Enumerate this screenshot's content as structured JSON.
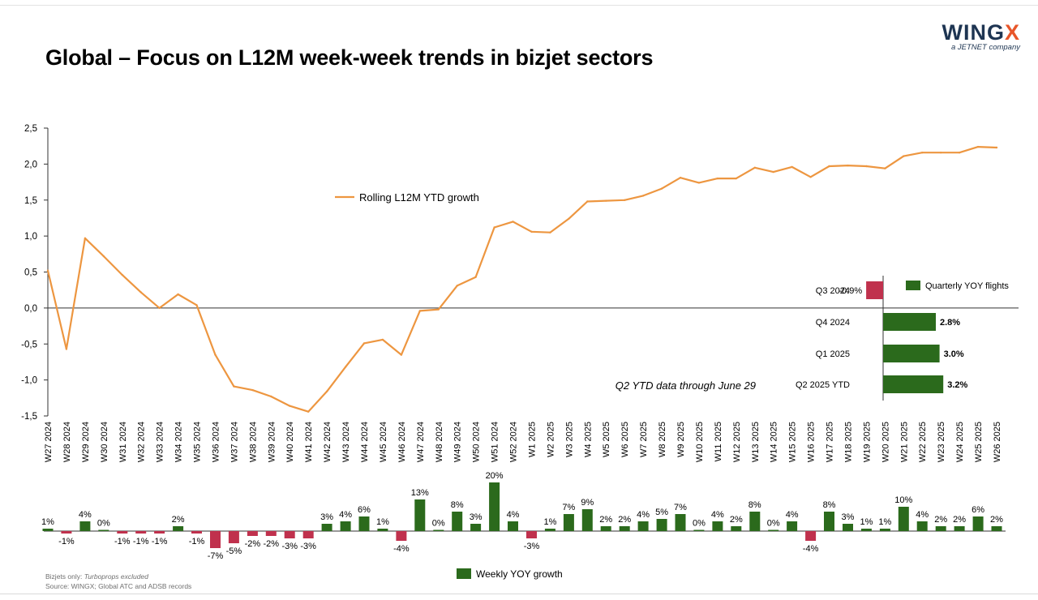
{
  "header": {
    "title": "Global – Focus on L12M week-week trends in bizjet sectors",
    "logo_main": "WING",
    "logo_x": "X",
    "logo_sub": "a JETNET company"
  },
  "footer": {
    "note_prefix": "Bizjets only: ",
    "note_italic": "Turboprops excluded",
    "source": "Source: WINGX; Global ATC and ADSB records"
  },
  "colors": {
    "line": "#ed9640",
    "positive": "#2b6a1c",
    "negative": "#c0314d",
    "axis": "#333333",
    "text": "#000000"
  },
  "chart_data": [
    {
      "type": "line",
      "series": [
        {
          "name": "Rolling L12M YTD growth",
          "values": [
            0.52,
            -0.57,
            0.97,
            0.72,
            0.46,
            0.22,
            0.0,
            0.19,
            0.04,
            -0.65,
            -1.09,
            -1.14,
            -1.23,
            -1.36,
            -1.44,
            -1.16,
            -0.82,
            -0.49,
            -0.44,
            -0.65,
            -0.04,
            -0.02,
            0.31,
            0.43,
            1.12,
            1.2,
            1.06,
            1.05,
            1.24,
            1.48,
            1.49,
            1.5,
            1.56,
            1.66,
            1.81,
            1.74,
            1.8,
            1.8,
            1.95,
            1.89,
            1.96,
            1.82,
            1.97,
            1.98,
            1.97,
            1.94,
            2.11,
            2.16,
            2.16,
            2.16,
            2.24,
            2.23
          ]
        }
      ],
      "categories": [
        "W27 2024",
        "W28 2024",
        "W29 2024",
        "W30 2024",
        "W31 2024",
        "W32 2024",
        "W33 2024",
        "W34 2024",
        "W35 2024",
        "W36 2024",
        "W37 2024",
        "W38 2024",
        "W39 2024",
        "W40 2024",
        "W41 2024",
        "W42 2024",
        "W43 2024",
        "W44 2024",
        "W45 2024",
        "W46 2024",
        "W47 2024",
        "W48 2024",
        "W49 2024",
        "W50 2024",
        "W51 2024",
        "W52 2024",
        "W1 2025",
        "W2 2025",
        "W3 2025",
        "W4 2025",
        "W5 2025",
        "W6 2025",
        "W7 2025",
        "W8 2025",
        "W9 2025",
        "W10 2025",
        "W11 2025",
        "W12 2025",
        "W13 2025",
        "W14 2025",
        "W15 2025",
        "W16 2025",
        "W17 2025",
        "W18 2025",
        "W19 2025",
        "W20 2025",
        "W21 2025",
        "W22 2025",
        "W23 2025",
        "W24 2025",
        "W25 2025",
        "W26 2025"
      ],
      "yticks": [
        "2,5",
        "2,0",
        "1,5",
        "1,0",
        "0,5",
        "0,0",
        "-0,5",
        "-1,0",
        "-1,5"
      ],
      "ylim": [
        -1.5,
        2.5
      ],
      "grid": false,
      "legend": "upper-center"
    },
    {
      "type": "bar",
      "series": [
        {
          "name": "Quarterly YOY flights",
          "values": [
            -0.9,
            2.8,
            3.0,
            3.2
          ],
          "labels": [
            "-0.9%",
            "2.8%",
            "3.0%",
            "3.2%"
          ]
        }
      ],
      "categories": [
        "Q3 2024",
        "Q4 2024",
        "Q1 2025",
        "Q2 2025 YTD"
      ],
      "orientation": "horizontal",
      "annotation": "Q2 YTD data through June 29",
      "legend": "top-right"
    },
    {
      "type": "bar",
      "series": [
        {
          "name": "Weekly YOY growth",
          "values": [
            1,
            -1,
            4,
            0,
            -1,
            -1,
            -1,
            2,
            -1,
            -7,
            -5,
            -2,
            -2,
            -3,
            -3,
            3,
            4,
            6,
            1,
            -4,
            13,
            0,
            8,
            3,
            20,
            4,
            -3,
            1,
            7,
            9,
            2,
            2,
            4,
            5,
            7,
            0,
            4,
            2,
            8,
            0,
            4,
            -4,
            8,
            3,
            1,
            1,
            10,
            4,
            2,
            2,
            6,
            2
          ],
          "labels": [
            "1%",
            "-1%",
            "4%",
            "0%",
            "-1%",
            "-1%",
            "-1%",
            "2%",
            "-1%",
            "-7%",
            "-5%",
            "-2%",
            "-2%",
            "-3%",
            "-3%",
            "3%",
            "4%",
            "6%",
            "1%",
            "-4%",
            "13%",
            "0%",
            "8%",
            "3%",
            "20%",
            "4%",
            "-3%",
            "1%",
            "7%",
            "9%",
            "2%",
            "2%",
            "4%",
            "5%",
            "7%",
            "0%",
            "4%",
            "2%",
            "8%",
            "0%",
            "4%",
            "-4%",
            "8%",
            "3%",
            "1%",
            "1%",
            "10%",
            "4%",
            "2%",
            "2%",
            "6%",
            "2%"
          ]
        }
      ],
      "legend": "bottom-center"
    }
  ]
}
